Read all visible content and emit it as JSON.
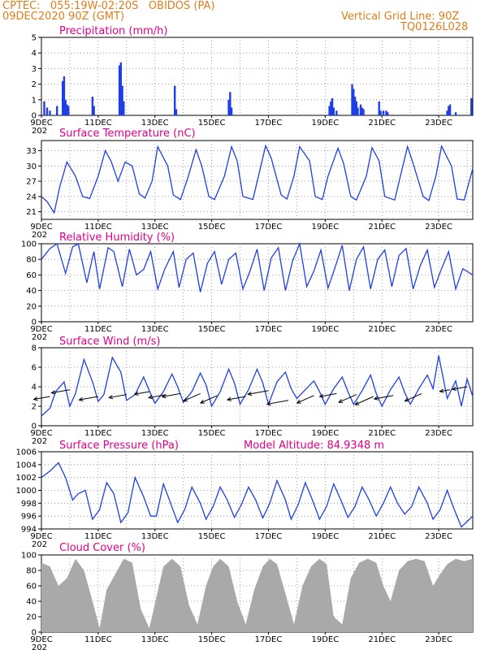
{
  "header": {
    "line1": "CPTEC:   055:19W-02:20S   OBIDOS (PA)",
    "line2": "09DEC2020 90Z (GMT)",
    "right1": "Vertical Grid Line: 90Z",
    "right2": "TQ0126L028"
  },
  "colors": {
    "title": "#e0008a",
    "header": "#e07d1a",
    "line": "#1f3fe6",
    "bar": "#1f3fe6",
    "cloud": "#a9a9a9"
  },
  "x_axis": {
    "labels": [
      "9DEC",
      "11DEC",
      "13DEC",
      "15DEC",
      "17DEC",
      "19DEC",
      "21DEC",
      "23DEC"
    ],
    "label_days": [
      0,
      2,
      4,
      6,
      8,
      10,
      12,
      14
    ],
    "range_days": [
      0,
      15.2
    ],
    "year_fragment": "202"
  },
  "chart_data": [
    {
      "type": "bar",
      "title": "Precipitation (mm/h)",
      "ylim": [
        0,
        5
      ],
      "yticks": [
        0,
        1,
        2,
        3,
        4,
        5
      ],
      "values": [
        [
          0.1,
          0.9
        ],
        [
          0.2,
          0.5
        ],
        [
          0.3,
          0.3
        ],
        [
          0.55,
          0.6
        ],
        [
          0.75,
          2.2
        ],
        [
          0.8,
          2.5
        ],
        [
          0.85,
          1.0
        ],
        [
          0.9,
          0.7
        ],
        [
          0.95,
          0.6
        ],
        [
          1.8,
          1.2
        ],
        [
          1.85,
          0.6
        ],
        [
          2.75,
          3.2
        ],
        [
          2.8,
          3.4
        ],
        [
          2.85,
          1.9
        ],
        [
          2.9,
          0.9
        ],
        [
          4.7,
          1.9
        ],
        [
          4.75,
          0.4
        ],
        [
          6.6,
          1.0
        ],
        [
          6.65,
          1.5
        ],
        [
          6.7,
          0.5
        ],
        [
          10.15,
          0.6
        ],
        [
          10.2,
          0.9
        ],
        [
          10.25,
          1.1
        ],
        [
          10.3,
          0.5
        ],
        [
          10.4,
          0.3
        ],
        [
          10.95,
          2.0
        ],
        [
          11.0,
          1.7
        ],
        [
          11.05,
          1.2
        ],
        [
          11.1,
          0.9
        ],
        [
          11.15,
          0.5
        ],
        [
          11.25,
          0.7
        ],
        [
          11.3,
          0.5
        ],
        [
          11.35,
          0.4
        ],
        [
          11.9,
          0.9
        ],
        [
          11.95,
          0.3
        ],
        [
          12.05,
          0.3
        ],
        [
          12.15,
          0.3
        ],
        [
          12.2,
          0.2
        ],
        [
          14.3,
          0.3
        ],
        [
          14.35,
          0.6
        ],
        [
          14.4,
          0.7
        ],
        [
          14.6,
          0.2
        ],
        [
          15.15,
          1.1
        ]
      ]
    },
    {
      "type": "line",
      "title": "Surface Temperature (nC)",
      "ylim": [
        19.5,
        35
      ],
      "yticks": [
        21,
        24,
        27,
        30,
        33
      ],
      "x": [
        0,
        0.2,
        0.45,
        0.65,
        0.9,
        1.2,
        1.45,
        1.7,
        2.0,
        2.25,
        2.45,
        2.7,
        2.95,
        3.2,
        3.45,
        3.65,
        3.9,
        4.1,
        4.45,
        4.65,
        4.9,
        5.15,
        5.45,
        5.65,
        5.9,
        6.1,
        6.45,
        6.7,
        6.9,
        7.1,
        7.45,
        7.65,
        7.9,
        8.1,
        8.45,
        8.65,
        8.9,
        9.1,
        9.45,
        9.65,
        9.9,
        10.1,
        10.45,
        10.65,
        10.9,
        11.1,
        11.45,
        11.65,
        11.9,
        12.1,
        12.45,
        12.65,
        12.9,
        13.1,
        13.45,
        13.65,
        13.9,
        14.1,
        14.45,
        14.65,
        14.9,
        15.2
      ],
      "y": [
        24,
        23,
        20.8,
        26,
        30.8,
        28,
        24,
        23.6,
        28,
        33,
        31,
        27,
        30.8,
        30,
        24.5,
        23.7,
        27,
        33.8,
        30,
        24.3,
        23.4,
        27.5,
        33.2,
        30,
        24,
        23.4,
        28,
        33.8,
        31,
        24,
        23.4,
        28,
        34,
        31.5,
        24.3,
        23.5,
        28,
        33.8,
        31,
        24,
        23.4,
        28,
        33.5,
        30.5,
        24,
        23.3,
        28,
        33.6,
        31,
        24,
        23.3,
        28,
        33.8,
        30.5,
        24,
        23.2,
        28,
        33.9,
        30,
        23.5,
        23.3,
        29.5
      ]
    },
    {
      "type": "line",
      "title": "Relative Humidity (%)",
      "ylim": [
        0,
        100
      ],
      "yticks": [
        0,
        20,
        40,
        60,
        80,
        100
      ],
      "x": [
        0,
        0.3,
        0.55,
        0.85,
        1.1,
        1.3,
        1.6,
        1.85,
        2.05,
        2.35,
        2.55,
        2.85,
        3.1,
        3.35,
        3.6,
        3.85,
        4.1,
        4.35,
        4.65,
        4.85,
        5.1,
        5.35,
        5.6,
        5.85,
        6.1,
        6.35,
        6.6,
        6.85,
        7.1,
        7.35,
        7.6,
        7.85,
        8.1,
        8.35,
        8.6,
        8.85,
        9.1,
        9.35,
        9.6,
        9.85,
        10.1,
        10.35,
        10.6,
        10.85,
        11.1,
        11.35,
        11.6,
        11.85,
        12.1,
        12.35,
        12.6,
        12.85,
        13.1,
        13.35,
        13.6,
        13.85,
        14.1,
        14.35,
        14.6,
        14.85,
        15.2
      ],
      "y": [
        80,
        94,
        100,
        62,
        96,
        100,
        50,
        90,
        42,
        95,
        90,
        45,
        93,
        60,
        67,
        90,
        42,
        68,
        90,
        44,
        80,
        88,
        38,
        75,
        90,
        48,
        80,
        88,
        42,
        65,
        93,
        40,
        82,
        95,
        40,
        78,
        100,
        45,
        65,
        92,
        43,
        70,
        98,
        40,
        80,
        96,
        42,
        80,
        92,
        45,
        85,
        94,
        42,
        72,
        92,
        44,
        68,
        90,
        42,
        68,
        60
      ]
    },
    {
      "type": "line",
      "title": "Surface Wind (m/s)",
      "ylim": [
        0,
        8
      ],
      "yticks": [
        0,
        2,
        4,
        6,
        8
      ],
      "x": [
        0,
        0.3,
        0.5,
        0.8,
        1.0,
        1.2,
        1.5,
        1.8,
        2.0,
        2.2,
        2.5,
        2.8,
        3.0,
        3.3,
        3.6,
        3.8,
        4.0,
        4.3,
        4.6,
        4.8,
        5.0,
        5.3,
        5.6,
        5.8,
        6.0,
        6.3,
        6.6,
        6.8,
        7.0,
        7.3,
        7.6,
        7.8,
        8.0,
        8.3,
        8.6,
        8.8,
        9.0,
        9.3,
        9.6,
        9.8,
        10.0,
        10.3,
        10.6,
        10.8,
        11.0,
        11.3,
        11.6,
        11.8,
        12.0,
        12.3,
        12.6,
        12.8,
        13.0,
        13.3,
        13.6,
        13.8,
        14.0,
        14.3,
        14.6,
        14.8,
        15.0,
        15.2
      ],
      "y": [
        1.0,
        1.8,
        3.5,
        4.5,
        2.0,
        3.3,
        6.8,
        4.5,
        2.5,
        3.2,
        7.0,
        5.5,
        2.6,
        3.2,
        5.0,
        3.6,
        2.3,
        3.5,
        5.3,
        4.0,
        2.4,
        3.5,
        5.4,
        4.2,
        2.0,
        3.5,
        5.8,
        4.4,
        2.2,
        3.7,
        5.8,
        4.4,
        2.2,
        4.5,
        5.5,
        3.8,
        2.8,
        3.7,
        4.6,
        3.5,
        2.2,
        3.8,
        5.0,
        3.5,
        2.2,
        3.6,
        5.2,
        3.3,
        2.0,
        3.7,
        5.0,
        3.4,
        2.2,
        3.8,
        5.2,
        3.8,
        7.2,
        2.8,
        4.6,
        2.0,
        4.8,
        3.0
      ],
      "arrows": [
        [
          0.3,
          3.0,
          2.2
        ],
        [
          1.0,
          3.7,
          2.5
        ],
        [
          2.0,
          3.0,
          2.6
        ],
        [
          3.0,
          3.2,
          2.4
        ],
        [
          3.8,
          3.5,
          2.0
        ],
        [
          4.4,
          3.2,
          2.4
        ],
        [
          4.9,
          3.3,
          2.5
        ],
        [
          5.6,
          3.3,
          2.3
        ],
        [
          6.2,
          3.1,
          2.3
        ],
        [
          7.2,
          3.0,
          2.5
        ],
        [
          8.0,
          3.6,
          2.8
        ],
        [
          8.7,
          2.6,
          2.9
        ],
        [
          9.6,
          3.1,
          2.3
        ],
        [
          10.4,
          3.3,
          2.3
        ],
        [
          11.1,
          3.2,
          2.4
        ],
        [
          11.7,
          3.0,
          2.5
        ],
        [
          12.4,
          3.1,
          2.6
        ],
        [
          13.4,
          3.3,
          2.3
        ],
        [
          14.4,
          3.7,
          1.4
        ],
        [
          15.0,
          4.0,
          2.0
        ]
      ]
    },
    {
      "type": "line",
      "title": "Surface Pressure (hPa)",
      "ylim": [
        994,
        1006
      ],
      "yticks": [
        994,
        996,
        998,
        1000,
        1002,
        1004,
        1006
      ],
      "annotation": "Model Altitude:  84.9348  m",
      "x": [
        0,
        0.3,
        0.6,
        0.85,
        1.1,
        1.3,
        1.55,
        1.8,
        2.05,
        2.3,
        2.55,
        2.8,
        3.05,
        3.3,
        3.6,
        3.85,
        4.05,
        4.3,
        4.55,
        4.8,
        5.05,
        5.3,
        5.6,
        5.8,
        6.05,
        6.3,
        6.55,
        6.8,
        7.05,
        7.3,
        7.55,
        7.8,
        8.05,
        8.3,
        8.6,
        8.8,
        9.05,
        9.3,
        9.55,
        9.8,
        10.05,
        10.3,
        10.55,
        10.8,
        11.05,
        11.3,
        11.55,
        11.8,
        12.05,
        12.3,
        12.55,
        12.8,
        13.05,
        13.3,
        13.6,
        13.8,
        14.05,
        14.3,
        14.55,
        14.8,
        15.2
      ],
      "y": [
        1002,
        1003,
        1004.3,
        1002,
        998.5,
        999.5,
        1000,
        995.5,
        997,
        1001.2,
        999.5,
        995,
        996.5,
        1002,
        999,
        996,
        996,
        1001,
        998,
        995,
        997,
        1000.5,
        998,
        995.5,
        997.5,
        1000.5,
        998.5,
        995.8,
        997.8,
        1000.5,
        998.5,
        995.7,
        998,
        1001.5,
        998.5,
        995.5,
        997.8,
        1001.2,
        998.5,
        995.5,
        997.5,
        1001,
        998.5,
        995.8,
        997.5,
        1000.5,
        998.5,
        996,
        998,
        1000.5,
        998,
        996.3,
        997.5,
        1000.5,
        998,
        995.5,
        997,
        1000,
        997,
        994.3,
        996
      ]
    },
    {
      "type": "area",
      "title": "Cloud Cover (%)",
      "ylim": [
        0,
        100
      ],
      "yticks": [
        0,
        20,
        40,
        60,
        80,
        100
      ],
      "x": [
        0,
        0.3,
        0.6,
        0.9,
        1.2,
        1.5,
        1.8,
        2.05,
        2.3,
        2.6,
        2.9,
        3.2,
        3.5,
        3.8,
        4.05,
        4.3,
        4.6,
        4.9,
        5.2,
        5.5,
        5.8,
        6.05,
        6.3,
        6.6,
        6.9,
        7.2,
        7.5,
        7.8,
        8.05,
        8.3,
        8.6,
        8.9,
        9.2,
        9.5,
        9.8,
        10.05,
        10.3,
        10.6,
        10.9,
        11.2,
        11.5,
        11.8,
        12.05,
        12.3,
        12.6,
        12.9,
        13.2,
        13.5,
        13.8,
        14.05,
        14.3,
        14.6,
        14.9,
        15.2
      ],
      "y": [
        90,
        85,
        60,
        70,
        95,
        80,
        40,
        5,
        55,
        75,
        95,
        90,
        30,
        5,
        45,
        85,
        95,
        85,
        35,
        10,
        60,
        85,
        95,
        85,
        40,
        10,
        55,
        85,
        95,
        88,
        50,
        10,
        60,
        85,
        95,
        88,
        20,
        10,
        70,
        90,
        95,
        90,
        60,
        40,
        80,
        92,
        95,
        92,
        60,
        75,
        88,
        95,
        92,
        95
      ]
    }
  ]
}
